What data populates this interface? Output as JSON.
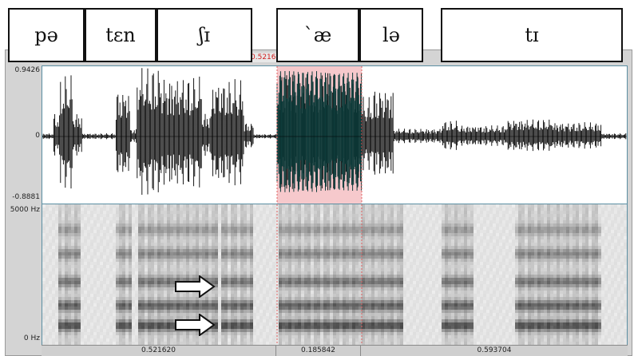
{
  "cursor_time": "0.521620",
  "waveform": {
    "y_max": "0.9426",
    "y_zero": "0",
    "y_min": "-0.8881"
  },
  "spectrogram": {
    "f_max": "5000 Hz",
    "f_min": "0 Hz"
  },
  "selection_colors": {
    "highlight": "#f6c9cc",
    "selected_wave": "#0d3b3a"
  },
  "durations": [
    "0.521620",
    "0.185842",
    "0.593704"
  ],
  "syllables": [
    "pə",
    "tɛn",
    "ʃɪ",
    "`æ",
    "lə",
    "tɪ"
  ],
  "arrows": [
    "arrow-right-icon",
    "arrow-right-icon"
  ]
}
